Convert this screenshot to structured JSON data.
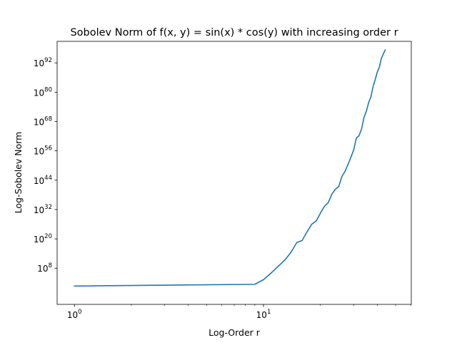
{
  "chart_data": {
    "type": "line",
    "title": "Sobolev Norm of f(x, y) = sin(x) * cos(y) with increasing order r",
    "xlabel": "Log-Order r",
    "ylabel": "Log-Sobolev Norm",
    "x_scale": "log",
    "y_scale": "log",
    "xlim": [
      0.81,
      60.5
    ],
    "ylim_exponent": [
      -6.8,
      100.8
    ],
    "x_ticks": [
      {
        "value": 1,
        "base": "10",
        "exp": "0"
      },
      {
        "value": 10,
        "base": "10",
        "exp": "1"
      }
    ],
    "y_ticks": [
      {
        "exp_value": 8,
        "base": "10",
        "exp": "8"
      },
      {
        "exp_value": 20,
        "base": "10",
        "exp": "20"
      },
      {
        "exp_value": 32,
        "base": "10",
        "exp": "32"
      },
      {
        "exp_value": 44,
        "base": "10",
        "exp": "44"
      },
      {
        "exp_value": 56,
        "base": "10",
        "exp": "56"
      },
      {
        "exp_value": 68,
        "base": "10",
        "exp": "68"
      },
      {
        "exp_value": 80,
        "base": "10",
        "exp": "80"
      },
      {
        "exp_value": 92,
        "base": "10",
        "exp": "92"
      }
    ],
    "grid": false,
    "legend": "none",
    "line_color": "#1f77b4",
    "series": [
      {
        "x": [
          1,
          9,
          10,
          11,
          12,
          13,
          14,
          15,
          16,
          17,
          18,
          19,
          20,
          21,
          22,
          23,
          24,
          25,
          26,
          27,
          28,
          29,
          30,
          31,
          32,
          33,
          34,
          35,
          36,
          37,
          38,
          39,
          40,
          41,
          42,
          43,
          44,
          45,
          46,
          47,
          48,
          49,
          50
        ],
        "y_log10": [
          0.7,
          1.4,
          3.3,
          6.1,
          8.9,
          11.4,
          14.6,
          18.5,
          19.3,
          22.9,
          26.0,
          27.3,
          30.5,
          33.3,
          34.8,
          38.3,
          40.3,
          41.4,
          45.6,
          47.6,
          50.5,
          53.4,
          56.4,
          61.3,
          62.2,
          64.9,
          69.7,
          72.2,
          75.8,
          78.1,
          82.4,
          85.2,
          88.3,
          90.2,
          93.8,
          95.6,
          97.3,
          0,
          0,
          0,
          0,
          0,
          0
        ]
      }
    ]
  }
}
